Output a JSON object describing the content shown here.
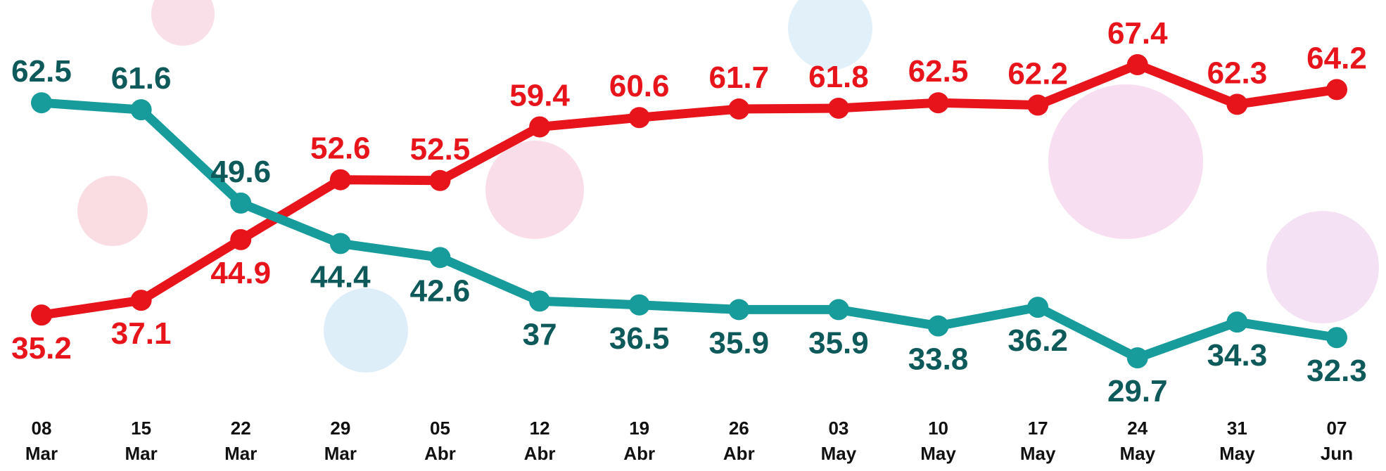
{
  "chart_data": {
    "type": "line",
    "categories": [
      "08 Mar",
      "15 Mar",
      "22 Mar",
      "29 Mar",
      "05 Abr",
      "12 Abr",
      "19 Abr",
      "26 Abr",
      "03 May",
      "10 May",
      "17 May",
      "24 May",
      "31 May",
      "07 Jun"
    ],
    "series": [
      {
        "color": "#e8141b",
        "label_color": "#e8141b",
        "values": [
          35.2,
          37.1,
          44.9,
          52.6,
          52.5,
          59.4,
          60.6,
          61.7,
          61.8,
          62.5,
          62.2,
          67.4,
          62.3,
          64.2
        ]
      },
      {
        "color": "#179b9b",
        "label_color": "#0e5a5a",
        "values": [
          62.5,
          61.6,
          49.6,
          44.4,
          42.6,
          37.0,
          36.5,
          35.9,
          35.9,
          33.8,
          36.2,
          29.7,
          34.3,
          32.3
        ]
      }
    ]
  }
}
